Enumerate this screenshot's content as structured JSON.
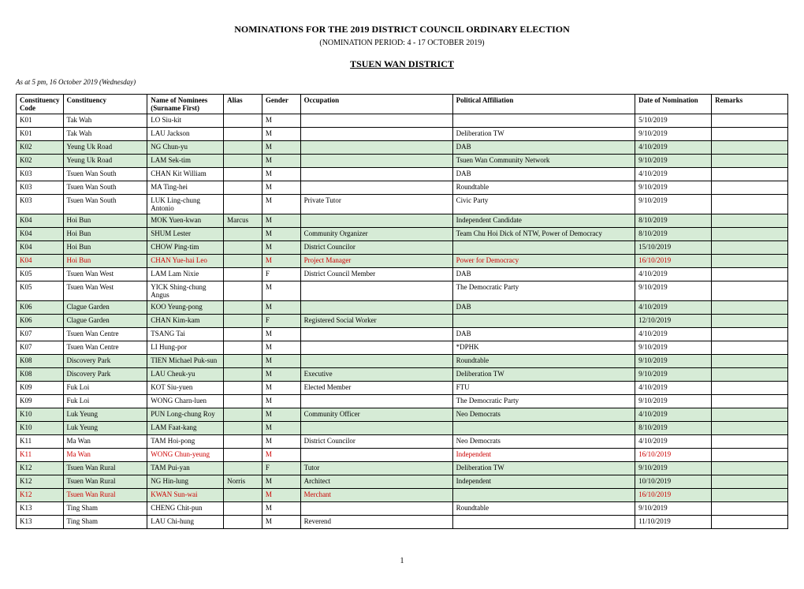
{
  "title": "NOMINATIONS FOR THE 2019 DISTRICT COUNCIL ORDINARY ELECTION",
  "subtitle": "(NOMINATION PERIOD: 4 - 17 OCTOBER 2019)",
  "district": "TSUEN WAN DISTRICT",
  "asat": "As at 5 pm, 16 October 2019 (Wednesday)",
  "headers": {
    "code1": "Constituency",
    "code2": "Code",
    "constituency": "Constituency",
    "name1": "Name of Nominees",
    "name2": "(Surname First)",
    "alias": "Alias",
    "gender": "Gender",
    "occupation": "Occupation",
    "affiliation": "Political Affiliation",
    "date": "Date of Nomination",
    "remarks": "Remarks"
  },
  "rows": [
    {
      "code": "K01",
      "constituency": "Tak Wah",
      "name": "LO Siu-kit",
      "alias": "",
      "gender": "M",
      "occupation": "",
      "affiliation": "",
      "date": "5/10/2019",
      "remarks": "",
      "green": false,
      "red": false
    },
    {
      "code": "K01",
      "constituency": "Tak Wah",
      "name": "LAU Jackson",
      "alias": "",
      "gender": "M",
      "occupation": "",
      "affiliation": "Deliberation TW",
      "date": "9/10/2019",
      "remarks": "",
      "green": false,
      "red": false
    },
    {
      "code": "K02",
      "constituency": "Yeung Uk Road",
      "name": "NG Chun-yu",
      "alias": "",
      "gender": "M",
      "occupation": "",
      "affiliation": "DAB",
      "date": "4/10/2019",
      "remarks": "",
      "green": true,
      "red": false
    },
    {
      "code": "K02",
      "constituency": "Yeung Uk Road",
      "name": "LAM Sek-tim",
      "alias": "",
      "gender": "M",
      "occupation": "",
      "affiliation": "Tsuen Wan Community Network",
      "date": "9/10/2019",
      "remarks": "",
      "green": true,
      "red": false
    },
    {
      "code": "K03",
      "constituency": "Tsuen Wan South",
      "name": "CHAN Kit William",
      "alias": "",
      "gender": "M",
      "occupation": "",
      "affiliation": "DAB",
      "date": "4/10/2019",
      "remarks": "",
      "green": false,
      "red": false
    },
    {
      "code": "K03",
      "constituency": "Tsuen Wan South",
      "name": "MA Ting-hei",
      "alias": "",
      "gender": "M",
      "occupation": "",
      "affiliation": "Roundtable",
      "date": "9/10/2019",
      "remarks": "",
      "green": false,
      "red": false
    },
    {
      "code": "K03",
      "constituency": "Tsuen Wan South",
      "name": "LUK Ling-chung Antonio",
      "alias": "",
      "gender": "M",
      "occupation": "Private Tutor",
      "affiliation": "Civic Party",
      "date": "9/10/2019",
      "remarks": "",
      "green": false,
      "red": false
    },
    {
      "code": "K04",
      "constituency": "Hoi Bun",
      "name": "MOK Yuen-kwan",
      "alias": "Marcus",
      "gender": "M",
      "occupation": "",
      "affiliation": "Independent Candidate",
      "date": "8/10/2019",
      "remarks": "",
      "green": true,
      "red": false
    },
    {
      "code": "K04",
      "constituency": "Hoi Bun",
      "name": "SHUM Lester",
      "alias": "",
      "gender": "M",
      "occupation": "Community Organizer",
      "affiliation": "Team Chu Hoi Dick of NTW, Power of Democracy",
      "date": "8/10/2019",
      "remarks": "",
      "green": true,
      "red": false
    },
    {
      "code": "K04",
      "constituency": "Hoi Bun",
      "name": "CHOW Ping-tim",
      "alias": "",
      "gender": "M",
      "occupation": "District Councilor",
      "affiliation": "",
      "date": "15/10/2019",
      "remarks": "",
      "green": true,
      "red": false
    },
    {
      "code": "K04",
      "constituency": "Hoi Bun",
      "name": "CHAN Yue-hai Leo",
      "alias": "",
      "gender": "M",
      "occupation": "Project Manager",
      "affiliation": "Power for Democracy",
      "date": "16/10/2019",
      "remarks": "",
      "green": true,
      "red": true
    },
    {
      "code": "K05",
      "constituency": "Tsuen Wan West",
      "name": "LAM Lam Nixie",
      "alias": "",
      "gender": "F",
      "occupation": "District Council Member",
      "affiliation": "DAB",
      "date": "4/10/2019",
      "remarks": "",
      "green": false,
      "red": false
    },
    {
      "code": "K05",
      "constituency": "Tsuen Wan West",
      "name": "YICK Shing-chung Angus",
      "alias": "",
      "gender": "M",
      "occupation": "",
      "affiliation": "The Democratic Party",
      "date": "9/10/2019",
      "remarks": "",
      "green": false,
      "red": false
    },
    {
      "code": "K06",
      "constituency": "Clague Garden",
      "name": "KOO Yeung-pong",
      "alias": "",
      "gender": "M",
      "occupation": "",
      "affiliation": "DAB",
      "date": "4/10/2019",
      "remarks": "",
      "green": true,
      "red": false
    },
    {
      "code": "K06",
      "constituency": "Clague Garden",
      "name": "CHAN Kim-kam",
      "alias": "",
      "gender": "F",
      "occupation": "Registered Social Worker",
      "affiliation": "",
      "date": "12/10/2019",
      "remarks": "",
      "green": true,
      "red": false
    },
    {
      "code": "K07",
      "constituency": "Tsuen Wan Centre",
      "name": "TSANG Tai",
      "alias": "",
      "gender": "M",
      "occupation": "",
      "affiliation": "DAB",
      "date": "4/10/2019",
      "remarks": "",
      "green": false,
      "red": false
    },
    {
      "code": "K07",
      "constituency": "Tsuen Wan Centre",
      "name": "LI Hung-por",
      "alias": "",
      "gender": "M",
      "occupation": "",
      "affiliation": "*DPHK",
      "date": "9/10/2019",
      "remarks": "",
      "green": false,
      "red": false
    },
    {
      "code": "K08",
      "constituency": "Discovery Park",
      "name": "TIEN Michael Puk-sun",
      "alias": "",
      "gender": "M",
      "occupation": "",
      "affiliation": "Roundtable",
      "date": "9/10/2019",
      "remarks": "",
      "green": true,
      "red": false
    },
    {
      "code": "K08",
      "constituency": "Discovery Park",
      "name": "LAU Cheuk-yu",
      "alias": "",
      "gender": "M",
      "occupation": "Executive",
      "affiliation": "Deliberation TW",
      "date": "9/10/2019",
      "remarks": "",
      "green": true,
      "red": false
    },
    {
      "code": "K09",
      "constituency": "Fuk Loi",
      "name": "KOT Siu-yuen",
      "alias": "",
      "gender": "M",
      "occupation": "Elected Member",
      "affiliation": "FTU",
      "date": "4/10/2019",
      "remarks": "",
      "green": false,
      "red": false
    },
    {
      "code": "K09",
      "constituency": "Fuk Loi",
      "name": "WONG Charn-luen",
      "alias": "",
      "gender": "M",
      "occupation": "",
      "affiliation": "The Democratic Party",
      "date": "9/10/2019",
      "remarks": "",
      "green": false,
      "red": false
    },
    {
      "code": "K10",
      "constituency": "Luk Yeung",
      "name": "PUN Long-chung Roy",
      "alias": "",
      "gender": "M",
      "occupation": "Community Officer",
      "affiliation": "Neo Democrats",
      "date": "4/10/2019",
      "remarks": "",
      "green": true,
      "red": false
    },
    {
      "code": "K10",
      "constituency": "Luk Yeung",
      "name": "LAM Faat-kang",
      "alias": "",
      "gender": "M",
      "occupation": "",
      "affiliation": "",
      "date": "8/10/2019",
      "remarks": "",
      "green": true,
      "red": false
    },
    {
      "code": "K11",
      "constituency": "Ma Wan",
      "name": "TAM Hoi-pong",
      "alias": "",
      "gender": "M",
      "occupation": "District Councilor",
      "affiliation": "Neo Democrats",
      "date": "4/10/2019",
      "remarks": "",
      "green": false,
      "red": false
    },
    {
      "code": "K11",
      "constituency": "Ma Wan",
      "name": "WONG Chun-yeung",
      "alias": "",
      "gender": "M",
      "occupation": "",
      "affiliation": "Independent",
      "date": "16/10/2019",
      "remarks": "",
      "green": false,
      "red": true
    },
    {
      "code": "K12",
      "constituency": "Tsuen Wan Rural",
      "name": "TAM Pui-yan",
      "alias": "",
      "gender": "F",
      "occupation": "Tutor",
      "affiliation": "Deliberation TW",
      "date": "9/10/2019",
      "remarks": "",
      "green": true,
      "red": false
    },
    {
      "code": "K12",
      "constituency": "Tsuen Wan Rural",
      "name": "NG Hin-lung",
      "alias": "Norris",
      "gender": "M",
      "occupation": "Architect",
      "affiliation": "Independent",
      "date": "10/10/2019",
      "remarks": "",
      "green": true,
      "red": false
    },
    {
      "code": "K12",
      "constituency": "Tsuen Wan Rural",
      "name": "KWAN Sun-wai",
      "alias": "",
      "gender": "M",
      "occupation": "Merchant",
      "affiliation": "",
      "date": "16/10/2019",
      "remarks": "",
      "green": true,
      "red": true
    },
    {
      "code": "K13",
      "constituency": "Ting Sham",
      "name": "CHENG Chit-pun",
      "alias": "",
      "gender": "M",
      "occupation": "",
      "affiliation": "Roundtable",
      "date": "9/10/2019",
      "remarks": "",
      "green": false,
      "red": false
    },
    {
      "code": "K13",
      "constituency": "Ting Sham",
      "name": "LAU Chi-hung",
      "alias": "",
      "gender": "M",
      "occupation": "Reverend",
      "affiliation": "",
      "date": "11/10/2019",
      "remarks": "",
      "green": false,
      "red": false
    }
  ],
  "pageno": "1",
  "style": {
    "green_bg": "#d6ebd6",
    "red_text": "#cc0000",
    "border_color": "#000000",
    "bg_color": "#ffffff",
    "font": "Times New Roman",
    "base_fontsize": 10,
    "table_fontsize": 9
  }
}
